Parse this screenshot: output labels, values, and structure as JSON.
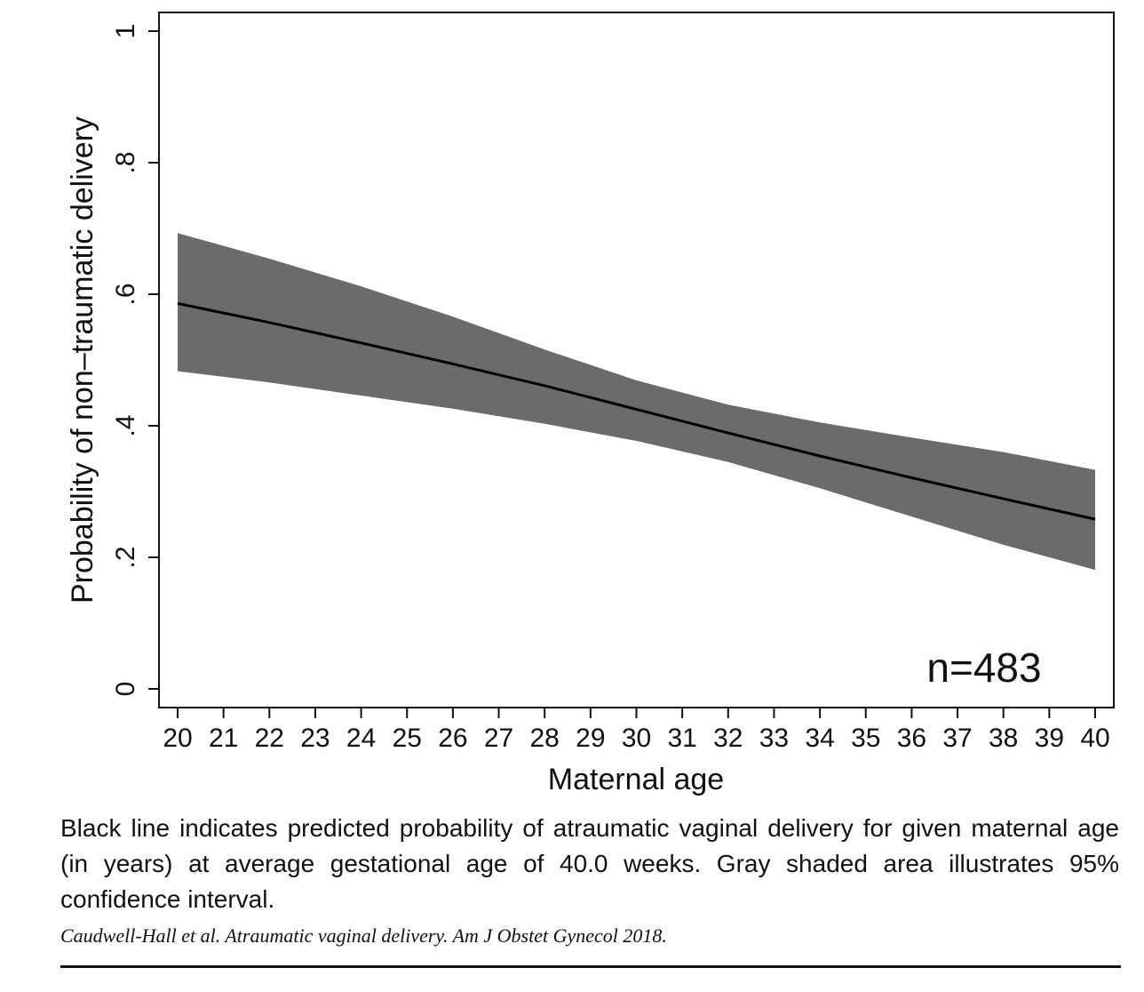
{
  "chart_data": {
    "type": "line",
    "xlabel": "Maternal age",
    "ylabel": "Probability of non–traumatic delivery",
    "xlim": [
      20,
      40
    ],
    "ylim": [
      0,
      1
    ],
    "x_ticks": [
      "20",
      "21",
      "22",
      "23",
      "24",
      "25",
      "26",
      "27",
      "28",
      "29",
      "30",
      "31",
      "32",
      "33",
      "34",
      "35",
      "36",
      "37",
      "38",
      "39",
      "40"
    ],
    "y_ticks": [
      {
        "value": 0,
        "label": "0"
      },
      {
        "value": 0.2,
        "label": ".2"
      },
      {
        "value": 0.4,
        "label": ".4"
      },
      {
        "value": 0.6,
        "label": ".6"
      },
      {
        "value": 0.8,
        "label": ".8"
      },
      {
        "value": 1,
        "label": "1"
      }
    ],
    "x": [
      20,
      22,
      24,
      26,
      28,
      30,
      32,
      34,
      36,
      38,
      40
    ],
    "series": [
      {
        "values": [
          0.586,
          0.557,
          0.526,
          0.494,
          0.461,
          0.425,
          0.389,
          0.354,
          0.321,
          0.289,
          0.258
        ]
      }
    ],
    "confidence_band": {
      "lower": [
        0.483,
        0.466,
        0.446,
        0.426,
        0.403,
        0.377,
        0.345,
        0.305,
        0.262,
        0.219,
        0.181
      ],
      "upper": [
        0.693,
        0.654,
        0.612,
        0.566,
        0.516,
        0.469,
        0.432,
        0.405,
        0.382,
        0.36,
        0.333
      ]
    },
    "annotation": "n=483",
    "grid": false,
    "colors": {
      "line": "#000000",
      "band": "#6b6b6b"
    }
  },
  "caption": "Black line indicates predicted probability of atraumatic vaginal delivery for given maternal age (in years) at average gestational age of 40.0 weeks. Gray shaded area illustrates 95% confidence interval.",
  "citation": "Caudwell-Hall et al. Atraumatic vaginal delivery. Am J Obstet Gynecol 2018."
}
